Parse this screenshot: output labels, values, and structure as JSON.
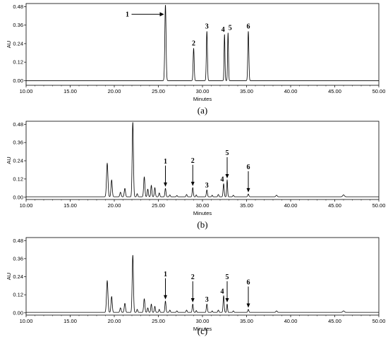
{
  "chart_data": [
    {
      "type": "line",
      "caption": "(a)",
      "xlabel": "Minutes",
      "ylabel": "AU",
      "xlim": [
        10.0,
        50.0
      ],
      "ylim": [
        -0.03,
        0.5
      ],
      "xticks": [
        "10.00",
        "15.00",
        "20.00",
        "25.00",
        "30.00",
        "35.00",
        "40.00",
        "45.00",
        "50.00"
      ],
      "yticks": [
        "0.00",
        "0.12",
        "0.24",
        "0.36",
        "0.48"
      ],
      "baseline": 0.0,
      "peaks": [
        {
          "x": 25.8,
          "h": 0.49,
          "w": 0.07
        },
        {
          "x": 29.0,
          "h": 0.21,
          "w": 0.06
        },
        {
          "x": 30.5,
          "h": 0.32,
          "w": 0.06
        },
        {
          "x": 32.5,
          "h": 0.3,
          "w": 0.05
        },
        {
          "x": 32.9,
          "h": 0.31,
          "w": 0.05
        },
        {
          "x": 35.2,
          "h": 0.32,
          "w": 0.06
        }
      ],
      "annotations": [
        {
          "label": "1",
          "x": 25.8,
          "y": 0.49,
          "arrow": "left"
        },
        {
          "label": "2",
          "x": 29.0,
          "y": 0.21
        },
        {
          "label": "3",
          "x": 30.5,
          "y": 0.32
        },
        {
          "label": "4",
          "x": 32.5,
          "y": 0.3
        },
        {
          "label": "5",
          "x": 32.9,
          "y": 0.31
        },
        {
          "label": "6",
          "x": 35.2,
          "y": 0.32
        }
      ]
    },
    {
      "type": "line",
      "caption": "(b)",
      "xlabel": "Minutes",
      "ylabel": "AU",
      "xlim": [
        10.0,
        50.0
      ],
      "ylim": [
        -0.015,
        0.5
      ],
      "xticks": [
        "10.00",
        "15.00",
        "20.00",
        "25.00",
        "30.00",
        "35.00",
        "40.00",
        "45.00",
        "50.00"
      ],
      "yticks": [
        "0.00",
        "0.12",
        "0.24",
        "0.36",
        "0.48"
      ],
      "baseline": 0.003,
      "peaks": [
        {
          "x": 19.2,
          "h": 0.22,
          "w": 0.08
        },
        {
          "x": 19.7,
          "h": 0.11,
          "w": 0.07
        },
        {
          "x": 20.7,
          "h": 0.03,
          "w": 0.07
        },
        {
          "x": 21.2,
          "h": 0.055,
          "w": 0.07
        },
        {
          "x": 22.1,
          "h": 0.49,
          "w": 0.07
        },
        {
          "x": 22.6,
          "h": 0.02,
          "w": 0.06
        },
        {
          "x": 23.4,
          "h": 0.13,
          "w": 0.07
        },
        {
          "x": 23.8,
          "h": 0.05,
          "w": 0.06
        },
        {
          "x": 24.2,
          "h": 0.075,
          "w": 0.06
        },
        {
          "x": 24.6,
          "h": 0.06,
          "w": 0.06
        },
        {
          "x": 25.1,
          "h": 0.025,
          "w": 0.06
        },
        {
          "x": 25.8,
          "h": 0.055,
          "w": 0.06
        },
        {
          "x": 26.3,
          "h": 0.012,
          "w": 0.06
        },
        {
          "x": 27.1,
          "h": 0.008,
          "w": 0.06
        },
        {
          "x": 28.2,
          "h": 0.015,
          "w": 0.06
        },
        {
          "x": 28.9,
          "h": 0.06,
          "w": 0.06
        },
        {
          "x": 29.3,
          "h": 0.012,
          "w": 0.05
        },
        {
          "x": 30.5,
          "h": 0.045,
          "w": 0.06
        },
        {
          "x": 31.1,
          "h": 0.01,
          "w": 0.05
        },
        {
          "x": 31.8,
          "h": 0.015,
          "w": 0.06
        },
        {
          "x": 32.4,
          "h": 0.085,
          "w": 0.06
        },
        {
          "x": 32.8,
          "h": 0.11,
          "w": 0.05
        },
        {
          "x": 33.5,
          "h": 0.01,
          "w": 0.06
        },
        {
          "x": 35.2,
          "h": 0.018,
          "w": 0.06
        },
        {
          "x": 38.4,
          "h": 0.01,
          "w": 0.08
        },
        {
          "x": 46.0,
          "h": 0.012,
          "w": 0.1
        }
      ],
      "annotations": [
        {
          "label": "1",
          "x": 25.8,
          "y": 0.055,
          "arrow": "down"
        },
        {
          "label": "2",
          "x": 28.9,
          "y": 0.06,
          "arrow": "down"
        },
        {
          "label": "3",
          "x": 30.5,
          "y": 0.045
        },
        {
          "label": "4",
          "x": 32.4,
          "y": 0.085
        },
        {
          "label": "5",
          "x": 32.8,
          "y": 0.11,
          "arrow": "down"
        },
        {
          "label": "6",
          "x": 35.2,
          "y": 0.018,
          "arrow": "down"
        }
      ]
    },
    {
      "type": "line",
      "caption": "(c)",
      "xlabel": "Minutes",
      "ylabel": "AU",
      "xlim": [
        10.0,
        50.0
      ],
      "ylim": [
        -0.015,
        0.5
      ],
      "xticks": [
        "10.00",
        "15.00",
        "20.00",
        "25.00",
        "30.00",
        "35.00",
        "40.00",
        "45.00",
        "50.00"
      ],
      "yticks": [
        "0.00",
        "0.12",
        "0.24",
        "0.36",
        "0.48"
      ],
      "baseline": 0.003,
      "peaks": [
        {
          "x": 19.2,
          "h": 0.21,
          "w": 0.08
        },
        {
          "x": 19.7,
          "h": 0.105,
          "w": 0.07
        },
        {
          "x": 20.7,
          "h": 0.03,
          "w": 0.07
        },
        {
          "x": 21.2,
          "h": 0.06,
          "w": 0.07
        },
        {
          "x": 22.1,
          "h": 0.38,
          "w": 0.07
        },
        {
          "x": 22.6,
          "h": 0.02,
          "w": 0.06
        },
        {
          "x": 23.4,
          "h": 0.09,
          "w": 0.07
        },
        {
          "x": 23.8,
          "h": 0.03,
          "w": 0.06
        },
        {
          "x": 24.2,
          "h": 0.055,
          "w": 0.06
        },
        {
          "x": 24.6,
          "h": 0.04,
          "w": 0.06
        },
        {
          "x": 25.1,
          "h": 0.02,
          "w": 0.06
        },
        {
          "x": 25.8,
          "h": 0.075,
          "w": 0.06
        },
        {
          "x": 26.3,
          "h": 0.015,
          "w": 0.06
        },
        {
          "x": 27.1,
          "h": 0.01,
          "w": 0.06
        },
        {
          "x": 28.2,
          "h": 0.015,
          "w": 0.06
        },
        {
          "x": 28.9,
          "h": 0.055,
          "w": 0.06
        },
        {
          "x": 29.3,
          "h": 0.012,
          "w": 0.05
        },
        {
          "x": 30.5,
          "h": 0.055,
          "w": 0.06
        },
        {
          "x": 31.1,
          "h": 0.01,
          "w": 0.05
        },
        {
          "x": 31.8,
          "h": 0.015,
          "w": 0.06
        },
        {
          "x": 32.4,
          "h": 0.11,
          "w": 0.06
        },
        {
          "x": 32.8,
          "h": 0.055,
          "w": 0.05
        },
        {
          "x": 33.5,
          "h": 0.01,
          "w": 0.06
        },
        {
          "x": 35.2,
          "h": 0.02,
          "w": 0.06
        },
        {
          "x": 38.4,
          "h": 0.01,
          "w": 0.08
        },
        {
          "x": 46.0,
          "h": 0.01,
          "w": 0.1
        }
      ],
      "annotations": [
        {
          "label": "1",
          "x": 25.8,
          "y": 0.075,
          "arrow": "down"
        },
        {
          "label": "2",
          "x": 28.9,
          "y": 0.055,
          "arrow": "down"
        },
        {
          "label": "3",
          "x": 30.5,
          "y": 0.055
        },
        {
          "label": "4",
          "x": 32.4,
          "y": 0.11
        },
        {
          "label": "5",
          "x": 32.8,
          "y": 0.055,
          "arrow": "down"
        },
        {
          "label": "6",
          "x": 35.2,
          "y": 0.02,
          "arrow": "down"
        }
      ]
    }
  ]
}
